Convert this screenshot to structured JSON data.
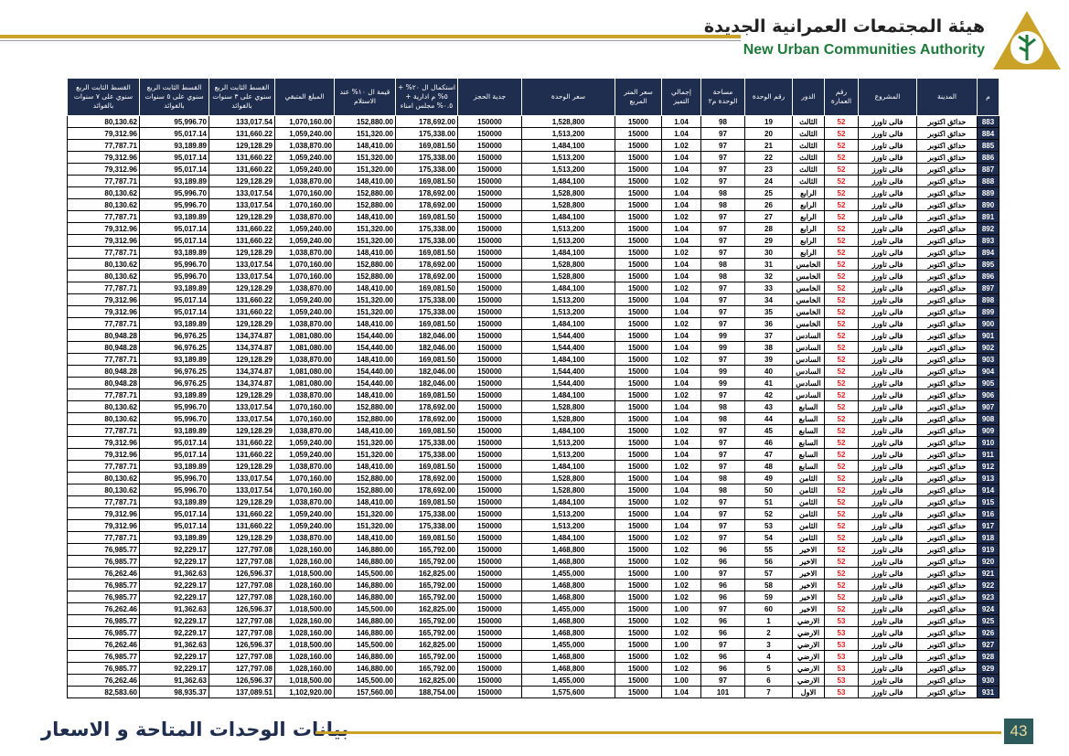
{
  "header": {
    "title_ar": "هيئة المجتمعات العمرانية الجديدة",
    "title_en": "New Urban Communities Authority"
  },
  "table": {
    "headers": [
      "م",
      "المدينة",
      "المشروع",
      "رقم العمارة",
      "الدور",
      "رقم الوحدة",
      "مساحة الوحدة م٢",
      "إجمالي التميز",
      "سعر المتر المربع",
      "سعر الوحدة",
      "جدية الحجز",
      "استكمال ال ٢٠% + ٥% م ادارية + ٠.٥% مجلس امناء",
      "قيمة ال ١٠% عند الاستلام",
      "المبلغ المتبقي",
      "القسط الثابت الربع سنوي على ٣ سنوات بالفوائد",
      "القسط الثابت الربع سنوي على ٥ سنوات بالفوائد",
      "القسط الثابت الربع سنوي على ٧ سنوات بالفوائد"
    ],
    "rows": [
      [
        "883",
        "حدائق اكتوبر",
        "فالى تاورز",
        "52",
        "الثالث",
        "19",
        "98",
        "1.04",
        "15000",
        "1,528,800",
        "150000",
        "178,692.00",
        "152,880.00",
        "1,070,160.00",
        "133,017.54",
        "95,996.70",
        "80,130.62"
      ],
      [
        "884",
        "حدائق اكتوبر",
        "فالى تاورز",
        "52",
        "الثالث",
        "20",
        "97",
        "1.04",
        "15000",
        "1,513,200",
        "150000",
        "175,338.00",
        "151,320.00",
        "1,059,240.00",
        "131,660.22",
        "95,017.14",
        "79,312.96"
      ],
      [
        "885",
        "حدائق اكتوبر",
        "فالى تاورز",
        "52",
        "الثالث",
        "21",
        "97",
        "1.02",
        "15000",
        "1,484,100",
        "150000",
        "169,081.50",
        "148,410.00",
        "1,038,870.00",
        "129,128.29",
        "93,189.89",
        "77,787.71"
      ],
      [
        "886",
        "حدائق اكتوبر",
        "فالى تاورز",
        "52",
        "الثالث",
        "22",
        "97",
        "1.04",
        "15000",
        "1,513,200",
        "150000",
        "175,338.00",
        "151,320.00",
        "1,059,240.00",
        "131,660.22",
        "95,017.14",
        "79,312.96"
      ],
      [
        "887",
        "حدائق اكتوبر",
        "فالى تاورز",
        "52",
        "الثالث",
        "23",
        "97",
        "1.04",
        "15000",
        "1,513,200",
        "150000",
        "175,338.00",
        "151,320.00",
        "1,059,240.00",
        "131,660.22",
        "95,017.14",
        "79,312.96"
      ],
      [
        "888",
        "حدائق اكتوبر",
        "فالى تاورز",
        "52",
        "الثالث",
        "24",
        "97",
        "1.02",
        "15000",
        "1,484,100",
        "150000",
        "169,081.50",
        "148,410.00",
        "1,038,870.00",
        "129,128.29",
        "93,189.89",
        "77,787.71"
      ],
      [
        "889",
        "حدائق اكتوبر",
        "فالى تاورز",
        "52",
        "الرابع",
        "25",
        "98",
        "1.04",
        "15000",
        "1,528,800",
        "150000",
        "178,692.00",
        "152,880.00",
        "1,070,160.00",
        "133,017.54",
        "95,996.70",
        "80,130.62"
      ],
      [
        "890",
        "حدائق اكتوبر",
        "فالى تاورز",
        "52",
        "الرابع",
        "26",
        "98",
        "1.04",
        "15000",
        "1,528,800",
        "150000",
        "178,692.00",
        "152,880.00",
        "1,070,160.00",
        "133,017.54",
        "95,996.70",
        "80,130.62"
      ],
      [
        "891",
        "حدائق اكتوبر",
        "فالى تاورز",
        "52",
        "الرابع",
        "27",
        "97",
        "1.02",
        "15000",
        "1,484,100",
        "150000",
        "169,081.50",
        "148,410.00",
        "1,038,870.00",
        "129,128.29",
        "93,189.89",
        "77,787.71"
      ],
      [
        "892",
        "حدائق اكتوبر",
        "فالى تاورز",
        "52",
        "الرابع",
        "28",
        "97",
        "1.04",
        "15000",
        "1,513,200",
        "150000",
        "175,338.00",
        "151,320.00",
        "1,059,240.00",
        "131,660.22",
        "95,017.14",
        "79,312.96"
      ],
      [
        "893",
        "حدائق اكتوبر",
        "فالى تاورز",
        "52",
        "الرابع",
        "29",
        "97",
        "1.04",
        "15000",
        "1,513,200",
        "150000",
        "175,338.00",
        "151,320.00",
        "1,059,240.00",
        "131,660.22",
        "95,017.14",
        "79,312.96"
      ],
      [
        "894",
        "حدائق اكتوبر",
        "فالى تاورز",
        "52",
        "الرابع",
        "30",
        "97",
        "1.02",
        "15000",
        "1,484,100",
        "150000",
        "169,081.50",
        "148,410.00",
        "1,038,870.00",
        "129,128.29",
        "93,189.89",
        "77,787.71"
      ],
      [
        "895",
        "حدائق اكتوبر",
        "فالى تاورز",
        "52",
        "الخامس",
        "31",
        "98",
        "1.04",
        "15000",
        "1,528,800",
        "150000",
        "178,692.00",
        "152,880.00",
        "1,070,160.00",
        "133,017.54",
        "95,996.70",
        "80,130.62"
      ],
      [
        "896",
        "حدائق اكتوبر",
        "فالى تاورز",
        "52",
        "الخامس",
        "32",
        "98",
        "1.04",
        "15000",
        "1,528,800",
        "150000",
        "178,692.00",
        "152,880.00",
        "1,070,160.00",
        "133,017.54",
        "95,996.70",
        "80,130.62"
      ],
      [
        "897",
        "حدائق اكتوبر",
        "فالى تاورز",
        "52",
        "الخامس",
        "33",
        "97",
        "1.02",
        "15000",
        "1,484,100",
        "150000",
        "169,081.50",
        "148,410.00",
        "1,038,870.00",
        "129,128.29",
        "93,189.89",
        "77,787.71"
      ],
      [
        "898",
        "حدائق اكتوبر",
        "فالى تاورز",
        "52",
        "الخامس",
        "34",
        "97",
        "1.04",
        "15000",
        "1,513,200",
        "150000",
        "175,338.00",
        "151,320.00",
        "1,059,240.00",
        "131,660.22",
        "95,017.14",
        "79,312.96"
      ],
      [
        "899",
        "حدائق اكتوبر",
        "فالى تاورز",
        "52",
        "الخامس",
        "35",
        "97",
        "1.04",
        "15000",
        "1,513,200",
        "150000",
        "175,338.00",
        "151,320.00",
        "1,059,240.00",
        "131,660.22",
        "95,017.14",
        "79,312.96"
      ],
      [
        "900",
        "حدائق اكتوبر",
        "فالى تاورز",
        "52",
        "الخامس",
        "36",
        "97",
        "1.02",
        "15000",
        "1,484,100",
        "150000",
        "169,081.50",
        "148,410.00",
        "1,038,870.00",
        "129,128.29",
        "93,189.89",
        "77,787.71"
      ],
      [
        "901",
        "حدائق اكتوبر",
        "فالى تاورز",
        "52",
        "السادس",
        "37",
        "99",
        "1.04",
        "15000",
        "1,544,400",
        "150000",
        "182,046.00",
        "154,440.00",
        "1,081,080.00",
        "134,374.87",
        "96,976.25",
        "80,948.28"
      ],
      [
        "902",
        "حدائق اكتوبر",
        "فالى تاورز",
        "52",
        "السادس",
        "38",
        "99",
        "1.04",
        "15000",
        "1,544,400",
        "150000",
        "182,046.00",
        "154,440.00",
        "1,081,080.00",
        "134,374.87",
        "96,976.25",
        "80,948.28"
      ],
      [
        "903",
        "حدائق اكتوبر",
        "فالى تاورز",
        "52",
        "السادس",
        "39",
        "97",
        "1.02",
        "15000",
        "1,484,100",
        "150000",
        "169,081.50",
        "148,410.00",
        "1,038,870.00",
        "129,128.29",
        "93,189.89",
        "77,787.71"
      ],
      [
        "904",
        "حدائق اكتوبر",
        "فالى تاورز",
        "52",
        "السادس",
        "40",
        "99",
        "1.04",
        "15000",
        "1,544,400",
        "150000",
        "182,046.00",
        "154,440.00",
        "1,081,080.00",
        "134,374.87",
        "96,976.25",
        "80,948.28"
      ],
      [
        "905",
        "حدائق اكتوبر",
        "فالى تاورز",
        "52",
        "السادس",
        "41",
        "99",
        "1.04",
        "15000",
        "1,544,400",
        "150000",
        "182,046.00",
        "154,440.00",
        "1,081,080.00",
        "134,374.87",
        "96,976.25",
        "80,948.28"
      ],
      [
        "906",
        "حدائق اكتوبر",
        "فالى تاورز",
        "52",
        "السادس",
        "42",
        "97",
        "1.02",
        "15000",
        "1,484,100",
        "150000",
        "169,081.50",
        "148,410.00",
        "1,038,870.00",
        "129,128.29",
        "93,189.89",
        "77,787.71"
      ],
      [
        "907",
        "حدائق اكتوبر",
        "فالى تاورز",
        "52",
        "السابع",
        "43",
        "98",
        "1.04",
        "15000",
        "1,528,800",
        "150000",
        "178,692.00",
        "152,880.00",
        "1,070,160.00",
        "133,017.54",
        "95,996.70",
        "80,130.62"
      ],
      [
        "908",
        "حدائق اكتوبر",
        "فالى تاورز",
        "52",
        "السابع",
        "44",
        "98",
        "1.04",
        "15000",
        "1,528,800",
        "150000",
        "178,692.00",
        "152,880.00",
        "1,070,160.00",
        "133,017.54",
        "95,996.70",
        "80,130.62"
      ],
      [
        "909",
        "حدائق اكتوبر",
        "فالى تاورز",
        "52",
        "السابع",
        "45",
        "97",
        "1.02",
        "15000",
        "1,484,100",
        "150000",
        "169,081.50",
        "148,410.00",
        "1,038,870.00",
        "129,128.29",
        "93,189.89",
        "77,787.71"
      ],
      [
        "910",
        "حدائق اكتوبر",
        "فالى تاورز",
        "52",
        "السابع",
        "46",
        "97",
        "1.04",
        "15000",
        "1,513,200",
        "150000",
        "175,338.00",
        "151,320.00",
        "1,059,240.00",
        "131,660.22",
        "95,017.14",
        "79,312.96"
      ],
      [
        "911",
        "حدائق اكتوبر",
        "فالى تاورز",
        "52",
        "السابع",
        "47",
        "97",
        "1.04",
        "15000",
        "1,513,200",
        "150000",
        "175,338.00",
        "151,320.00",
        "1,059,240.00",
        "131,660.22",
        "95,017.14",
        "79,312.96"
      ],
      [
        "912",
        "حدائق اكتوبر",
        "فالى تاورز",
        "52",
        "السابع",
        "48",
        "97",
        "1.02",
        "15000",
        "1,484,100",
        "150000",
        "169,081.50",
        "148,410.00",
        "1,038,870.00",
        "129,128.29",
        "93,189.89",
        "77,787.71"
      ],
      [
        "913",
        "حدائق اكتوبر",
        "فالى تاورز",
        "52",
        "الثامن",
        "49",
        "98",
        "1.04",
        "15000",
        "1,528,800",
        "150000",
        "178,692.00",
        "152,880.00",
        "1,070,160.00",
        "133,017.54",
        "95,996.70",
        "80,130.62"
      ],
      [
        "914",
        "حدائق اكتوبر",
        "فالى تاورز",
        "52",
        "الثامن",
        "50",
        "98",
        "1.04",
        "15000",
        "1,528,800",
        "150000",
        "178,692.00",
        "152,880.00",
        "1,070,160.00",
        "133,017.54",
        "95,996.70",
        "80,130.62"
      ],
      [
        "915",
        "حدائق اكتوبر",
        "فالى تاورز",
        "52",
        "الثامن",
        "51",
        "97",
        "1.02",
        "15000",
        "1,484,100",
        "150000",
        "169,081.50",
        "148,410.00",
        "1,038,870.00",
        "129,128.29",
        "93,189.89",
        "77,787.71"
      ],
      [
        "916",
        "حدائق اكتوبر",
        "فالى تاورز",
        "52",
        "الثامن",
        "52",
        "97",
        "1.04",
        "15000",
        "1,513,200",
        "150000",
        "175,338.00",
        "151,320.00",
        "1,059,240.00",
        "131,660.22",
        "95,017.14",
        "79,312.96"
      ],
      [
        "917",
        "حدائق اكتوبر",
        "فالى تاورز",
        "52",
        "الثامن",
        "53",
        "97",
        "1.04",
        "15000",
        "1,513,200",
        "150000",
        "175,338.00",
        "151,320.00",
        "1,059,240.00",
        "131,660.22",
        "95,017.14",
        "79,312.96"
      ],
      [
        "918",
        "حدائق اكتوبر",
        "فالى تاورز",
        "52",
        "الثامن",
        "54",
        "97",
        "1.02",
        "15000",
        "1,484,100",
        "150000",
        "169,081.50",
        "148,410.00",
        "1,038,870.00",
        "129,128.29",
        "93,189.89",
        "77,787.71"
      ],
      [
        "919",
        "حدائق اكتوبر",
        "فالى تاورز",
        "52",
        "الاخير",
        "55",
        "96",
        "1.02",
        "15000",
        "1,468,800",
        "150000",
        "165,792.00",
        "146,880.00",
        "1,028,160.00",
        "127,797.08",
        "92,229.17",
        "76,985.77"
      ],
      [
        "920",
        "حدائق اكتوبر",
        "فالى تاورز",
        "52",
        "الاخير",
        "56",
        "96",
        "1.02",
        "15000",
        "1,468,800",
        "150000",
        "165,792.00",
        "146,880.00",
        "1,028,160.00",
        "127,797.08",
        "92,229.17",
        "76,985.77"
      ],
      [
        "921",
        "حدائق اكتوبر",
        "فالى تاورز",
        "52",
        "الاخير",
        "57",
        "97",
        "1.00",
        "15000",
        "1,455,000",
        "150000",
        "162,825.00",
        "145,500.00",
        "1,018,500.00",
        "126,596.37",
        "91,362.63",
        "76,262.46"
      ],
      [
        "922",
        "حدائق اكتوبر",
        "فالى تاورز",
        "52",
        "الاخير",
        "58",
        "96",
        "1.02",
        "15000",
        "1,468,800",
        "150000",
        "165,792.00",
        "146,880.00",
        "1,028,160.00",
        "127,797.08",
        "92,229.17",
        "76,985.77"
      ],
      [
        "923",
        "حدائق اكتوبر",
        "فالى تاورز",
        "52",
        "الاخير",
        "59",
        "96",
        "1.02",
        "15000",
        "1,468,800",
        "150000",
        "165,792.00",
        "146,880.00",
        "1,028,160.00",
        "127,797.08",
        "92,229.17",
        "76,985.77"
      ],
      [
        "924",
        "حدائق اكتوبر",
        "فالى تاورز",
        "52",
        "الاخير",
        "60",
        "97",
        "1.00",
        "15000",
        "1,455,000",
        "150000",
        "162,825.00",
        "145,500.00",
        "1,018,500.00",
        "126,596.37",
        "91,362.63",
        "76,262.46"
      ],
      [
        "925",
        "حدائق اكتوبر",
        "فالى تاورز",
        "53",
        "الارضي",
        "1",
        "96",
        "1.02",
        "15000",
        "1,468,800",
        "150000",
        "165,792.00",
        "146,880.00",
        "1,028,160.00",
        "127,797.08",
        "92,229.17",
        "76,985.77"
      ],
      [
        "926",
        "حدائق اكتوبر",
        "فالى تاورز",
        "53",
        "الارضي",
        "2",
        "96",
        "1.02",
        "15000",
        "1,468,800",
        "150000",
        "165,792.00",
        "146,880.00",
        "1,028,160.00",
        "127,797.08",
        "92,229.17",
        "76,985.77"
      ],
      [
        "927",
        "حدائق اكتوبر",
        "فالى تاورز",
        "53",
        "الارضي",
        "3",
        "97",
        "1.00",
        "15000",
        "1,455,000",
        "150000",
        "162,825.00",
        "145,500.00",
        "1,018,500.00",
        "126,596.37",
        "91,362.63",
        "76,262.46"
      ],
      [
        "928",
        "حدائق اكتوبر",
        "فالى تاورز",
        "53",
        "الارضي",
        "4",
        "96",
        "1.02",
        "15000",
        "1,468,800",
        "150000",
        "165,792.00",
        "146,880.00",
        "1,028,160.00",
        "127,797.08",
        "92,229.17",
        "76,985.77"
      ],
      [
        "929",
        "حدائق اكتوبر",
        "فالى تاورز",
        "53",
        "الارضي",
        "5",
        "96",
        "1.02",
        "15000",
        "1,468,800",
        "150000",
        "165,792.00",
        "146,880.00",
        "1,028,160.00",
        "127,797.08",
        "92,229.17",
        "76,985.77"
      ],
      [
        "930",
        "حدائق اكتوبر",
        "فالى تاورز",
        "53",
        "الارضي",
        "6",
        "97",
        "1.00",
        "15000",
        "1,455,000",
        "150000",
        "162,825.00",
        "145,500.00",
        "1,018,500.00",
        "126,596.37",
        "91,362.63",
        "76,262.46"
      ],
      [
        "931",
        "حدائق اكتوبر",
        "فالى تاورز",
        "53",
        "الاول",
        "7",
        "101",
        "1.04",
        "15000",
        "1,575,600",
        "150000",
        "188,754.00",
        "157,560.00",
        "1,102,920.00",
        "137,089.51",
        "98,935.37",
        "82,583.60"
      ]
    ]
  },
  "footer": {
    "title": "بيانات الوحدات المتاحة و الاسعار",
    "page": "43"
  }
}
